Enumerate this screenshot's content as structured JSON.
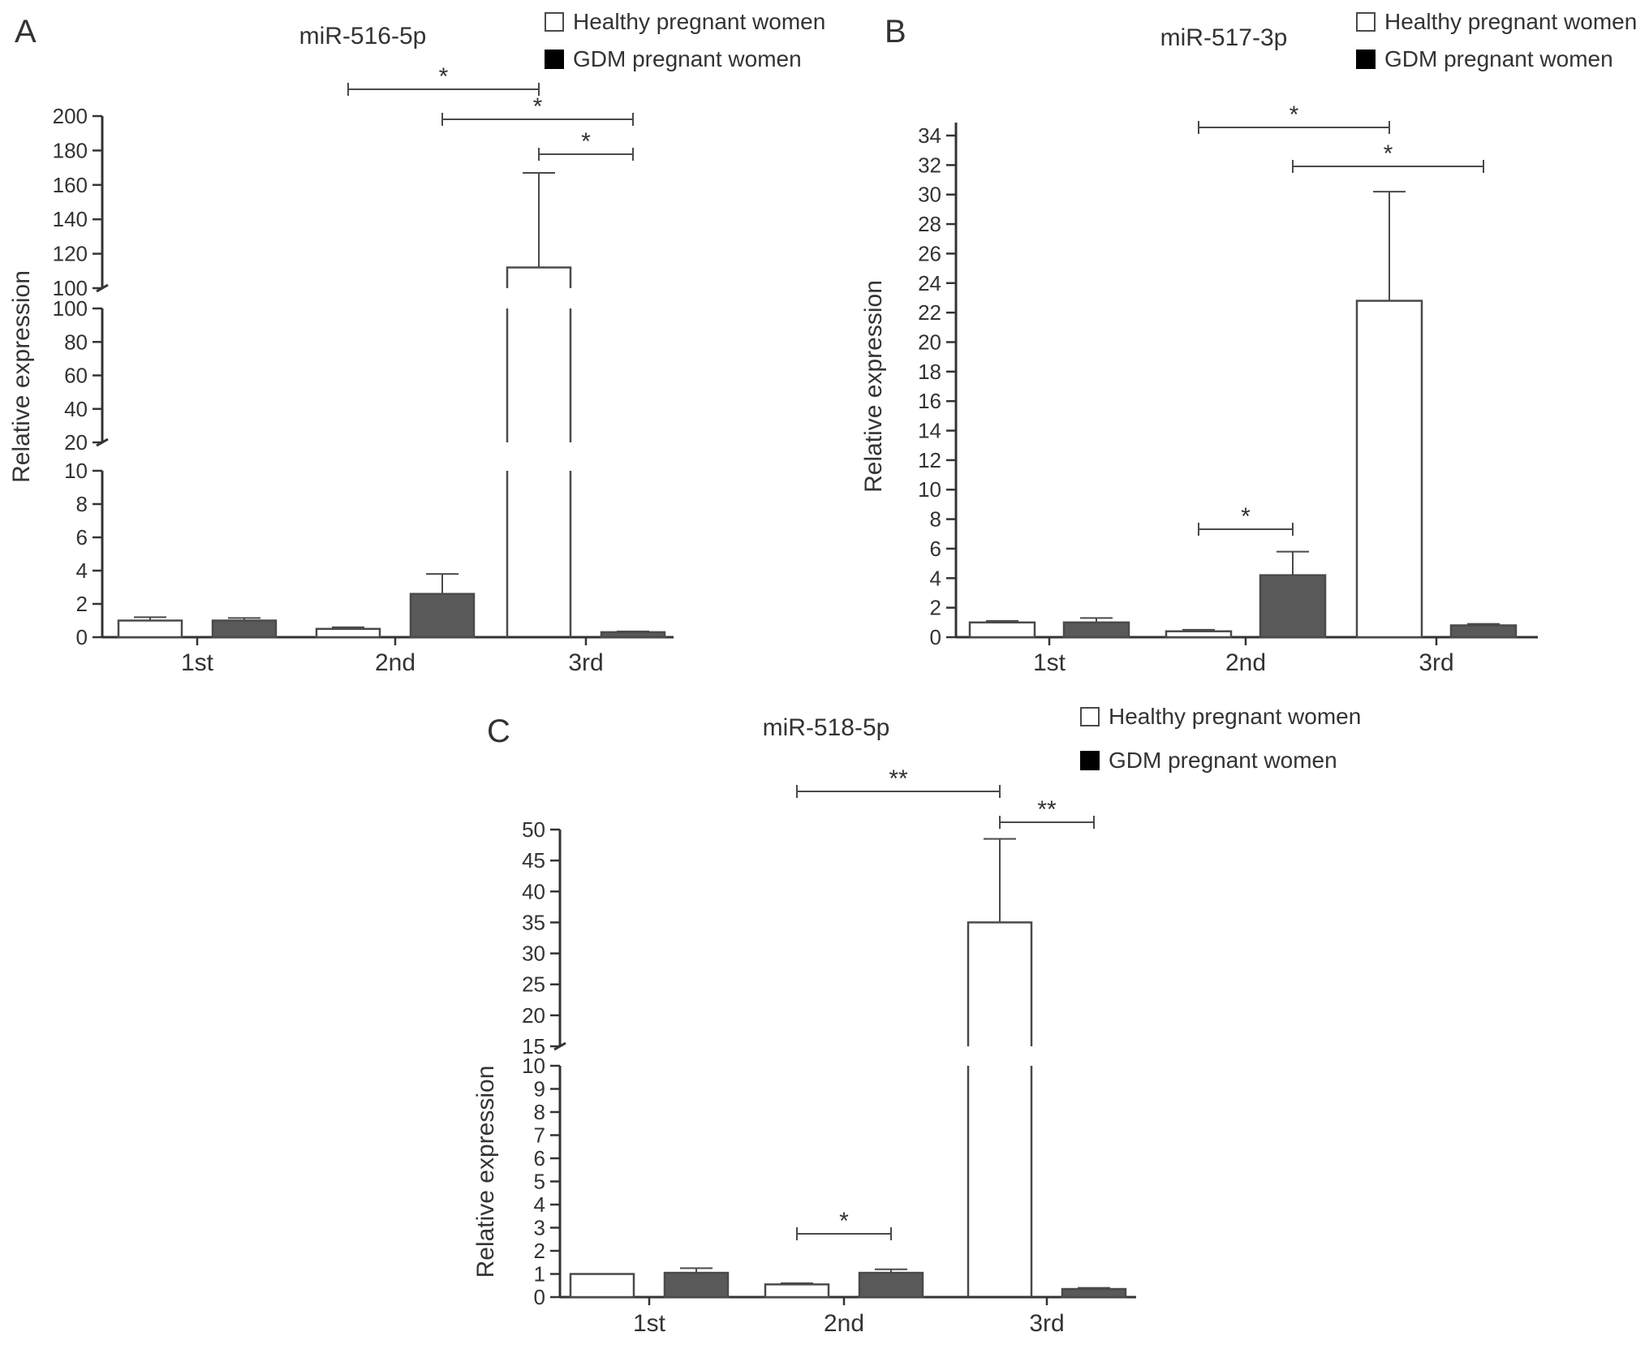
{
  "legend": {
    "healthy_label": "Healthy pregnant women",
    "gdm_label": "GDM pregnant women"
  },
  "colors": {
    "healthy": "#ffffff",
    "gdm": "#595959",
    "stroke": "#4a4a4a",
    "axis": "#333333"
  },
  "chart_data": [
    {
      "panel_label": "A",
      "type": "bar",
      "title": "miR-516-5p",
      "ylabel": "Relative expression",
      "categories": [
        "1st",
        "2nd",
        "3rd"
      ],
      "broken_axis_segments": [
        [
          0,
          10
        ],
        [
          20,
          100
        ],
        [
          100,
          200
        ]
      ],
      "yticks": [
        [
          0,
          2,
          4,
          6,
          8,
          10
        ],
        [
          20,
          40,
          60,
          80,
          100
        ],
        [
          100,
          120,
          140,
          160,
          180,
          200
        ]
      ],
      "series": [
        {
          "name": "Healthy pregnant women",
          "values": [
            1.0,
            0.5,
            112
          ],
          "errors": [
            0.2,
            0.1,
            55
          ]
        },
        {
          "name": "GDM pregnant women",
          "values": [
            1.0,
            2.6,
            0.3
          ],
          "errors": [
            0.15,
            1.2,
            0.05
          ]
        }
      ],
      "significance": [
        {
          "label": "*",
          "from": [
            1,
            0
          ],
          "to": [
            2,
            0
          ],
          "level": 0
        },
        {
          "label": "*",
          "from": [
            1,
            1
          ],
          "to": [
            2,
            1
          ],
          "level": 1
        },
        {
          "label": "*",
          "from": [
            2,
            0
          ],
          "to": [
            2,
            1
          ],
          "level": 2
        }
      ]
    },
    {
      "panel_label": "B",
      "type": "bar",
      "title": "miR-517-3p",
      "ylabel": "Relative expression",
      "categories": [
        "1st",
        "2nd",
        "3rd"
      ],
      "ylim": [
        0,
        34
      ],
      "yticks": [
        0,
        2,
        4,
        6,
        8,
        10,
        12,
        14,
        16,
        18,
        20,
        22,
        24,
        26,
        28,
        30,
        32,
        34
      ],
      "series": [
        {
          "name": "Healthy pregnant women",
          "values": [
            1.0,
            0.4,
            22.8
          ],
          "errors": [
            0.1,
            0.1,
            7.4
          ]
        },
        {
          "name": "GDM pregnant women",
          "values": [
            1.0,
            4.2,
            0.8
          ],
          "errors": [
            0.3,
            1.6,
            0.1
          ]
        }
      ],
      "significance": [
        {
          "label": "*",
          "from": [
            1,
            0
          ],
          "to": [
            2,
            0
          ],
          "level": 0
        },
        {
          "label": "*",
          "from": [
            1,
            1
          ],
          "to": [
            2,
            1
          ],
          "level": 1
        },
        {
          "label": "*",
          "from": [
            1,
            0
          ],
          "to": [
            1,
            1
          ],
          "level": 2
        }
      ]
    },
    {
      "panel_label": "C",
      "type": "bar",
      "title": "miR-518-5p",
      "ylabel": "Relative expression",
      "categories": [
        "1st",
        "2nd",
        "3rd"
      ],
      "broken_axis_segments": [
        [
          0,
          10
        ],
        [
          15,
          50
        ]
      ],
      "yticks": [
        [
          0,
          1,
          2,
          3,
          4,
          5,
          6,
          7,
          8,
          9,
          10
        ],
        [
          15,
          20,
          25,
          30,
          35,
          40,
          45,
          50
        ]
      ],
      "series": [
        {
          "name": "Healthy pregnant women",
          "values": [
            1.0,
            0.55,
            35
          ],
          "errors": [
            0.0,
            0.05,
            13.5
          ]
        },
        {
          "name": "GDM pregnant women",
          "values": [
            1.05,
            1.05,
            0.35
          ],
          "errors": [
            0.2,
            0.15,
            0.05
          ]
        }
      ],
      "significance": [
        {
          "label": "**",
          "from": [
            1,
            0
          ],
          "to": [
            2,
            0
          ],
          "level": 0
        },
        {
          "label": "**",
          "from": [
            2,
            0
          ],
          "to": [
            2,
            1
          ],
          "level": 1
        },
        {
          "label": "*",
          "from": [
            1,
            0
          ],
          "to": [
            1,
            1
          ],
          "level": 2
        }
      ]
    }
  ]
}
